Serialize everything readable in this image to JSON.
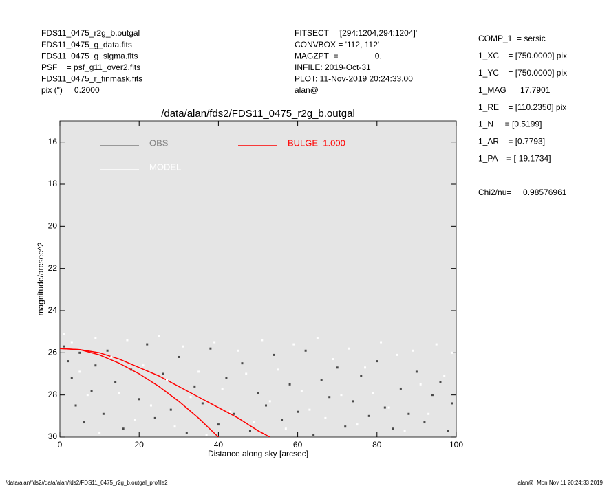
{
  "header": {
    "left": [
      "FDS11_0475_r2g_b.outgal",
      "FDS11_0475_g_data.fits",
      "FDS11_0475_g_sigma.fits",
      "PSF    = psf_g11_over2.fits",
      "FDS11_0475_r_finmask.fits",
      "pix (\") =  0.2000"
    ],
    "middle": [
      "FITSECT = '[294:1204,294:1204]'",
      "CONVBOX = '112, 112'",
      "MAGZPT  =                0.",
      "INFILE: 2019-Oct-31",
      "PLOT: 11-Nov-2019 20:24:33.00",
      "alan@"
    ],
    "right": [
      "COMP_1  = sersic",
      "1_XC    = [750.0000] pix",
      "1_YC    = [750.0000] pix",
      "1_MAG   = 17.7901",
      "1_RE    = [110.2350] pix",
      "1_N     = [0.5199]",
      "1_AR    = [0.7793]",
      "1_PA    = [-19.1734]"
    ],
    "chi2": "Chi2/nu=     0.98576961"
  },
  "footer": {
    "left": "/data/alan/fds2//data/alan/fds2/FDS11_0475_r2g_b.outgal_profile2",
    "right": "alan@  Mon Nov 11 20:24:33 2019"
  },
  "chart_data": {
    "type": "scatter",
    "title": "/data/alan/fds2/FDS11_0475_r2g_b.outgal",
    "x_label": "Distance along sky [arcsec]",
    "y_label": "magnitude/arcsec^2",
    "xlim": [
      0,
      100
    ],
    "ylim": [
      15,
      30
    ],
    "xticks": [
      0,
      20,
      40,
      60,
      80,
      100
    ],
    "yticks": [
      16,
      18,
      20,
      22,
      24,
      26,
      28,
      30
    ],
    "legend": "upper left",
    "background": "#e5e5e5",
    "series": [
      {
        "name": "OBS",
        "type": "scatter",
        "color": "#808080",
        "point_color": "#4a4a4a",
        "x": [
          1,
          2,
          3,
          4,
          5,
          6,
          8,
          9,
          11,
          12,
          14,
          16,
          18,
          20,
          22,
          24,
          26,
          28,
          30,
          32,
          34,
          36,
          38,
          40,
          42,
          44,
          46,
          48,
          50,
          52,
          54,
          56,
          58,
          60,
          62,
          64,
          66,
          68,
          70,
          72,
          74,
          76,
          78,
          80,
          82,
          84,
          86,
          88,
          90,
          92,
          94,
          96,
          98,
          99
        ],
        "values": [
          25.7,
          26.4,
          27.2,
          28.5,
          26.0,
          29.3,
          27.8,
          26.6,
          28.9,
          25.9,
          27.4,
          29.6,
          26.8,
          28.2,
          25.6,
          29.1,
          27.0,
          28.7,
          26.2,
          29.8,
          27.6,
          28.4,
          25.8,
          29.4,
          27.2,
          28.9,
          26.5,
          29.7,
          27.9,
          28.5,
          26.1,
          29.2,
          27.5,
          28.8,
          25.9,
          29.9,
          27.3,
          28.1,
          26.7,
          29.5,
          28.3,
          27.1,
          29.0,
          26.4,
          28.6,
          29.6,
          27.7,
          28.9,
          26.9,
          29.3,
          28.0,
          27.4,
          29.7,
          28.4
        ]
      },
      {
        "name": "BULGE  1.000",
        "type": "line",
        "color": "#ff0000",
        "x": [
          0,
          5,
          10,
          15,
          20,
          25,
          30,
          35,
          40,
          45,
          50,
          53
        ],
        "values": [
          25.8,
          25.85,
          26.1,
          26.5,
          27.0,
          27.6,
          28.3,
          29.1,
          30.0,
          null,
          null,
          null
        ],
        "values_outer": [
          25.8,
          25.85,
          26.0,
          26.3,
          26.7,
          27.1,
          27.6,
          28.1,
          28.6,
          29.1,
          29.7,
          30.0
        ]
      },
      {
        "name": "MODEL",
        "type": "scatter",
        "color": "#ffffff",
        "point_color": "#ffffff",
        "x": [
          1,
          3,
          5,
          7,
          9,
          10,
          13,
          15,
          17,
          19,
          21,
          23,
          25,
          27,
          29,
          31,
          33,
          35,
          37,
          39,
          41,
          43,
          45,
          47,
          49,
          51,
          53,
          55,
          57,
          59,
          61,
          63,
          65,
          67,
          69,
          71,
          73,
          75,
          77,
          79,
          81,
          83,
          85,
          87,
          89,
          91,
          93,
          95,
          97,
          99
        ],
        "values": [
          25.1,
          25.5,
          26.9,
          28.0,
          25.3,
          29.8,
          26.2,
          27.9,
          25.4,
          29.2,
          26.6,
          28.5,
          25.2,
          27.3,
          29.5,
          25.7,
          28.1,
          26.9,
          29.9,
          25.5,
          27.7,
          28.8,
          25.9,
          27.0,
          29.3,
          25.4,
          28.3,
          26.8,
          29.6,
          25.6,
          27.8,
          28.7,
          25.3,
          29.1,
          26.3,
          28.0,
          25.8,
          29.4,
          26.7,
          27.9,
          25.5,
          28.6,
          26.1,
          29.7,
          25.9,
          27.5,
          28.9,
          25.6,
          27.1,
          26.0
        ]
      }
    ]
  }
}
